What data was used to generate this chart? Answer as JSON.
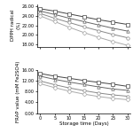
{
  "x": [
    0,
    5,
    10,
    15,
    20,
    25,
    30
  ],
  "top_ylabel": "DPPH radical\n(%)",
  "bottom_ylabel": "FRAP value (mM Fe2SO4)",
  "xlabel": "Storage time (Days)",
  "top_yticks": [
    18.0,
    20.0,
    22.0,
    24.0,
    26.0
  ],
  "bottom_yticks": [
    0.0,
    4.0,
    8.0,
    12.0,
    16.0
  ],
  "top_lines": [
    {
      "y": [
        25.5,
        25.0,
        24.4,
        23.8,
        23.2,
        22.7,
        22.2
      ],
      "color": "#444444",
      "marker": "s",
      "ls": "-"
    },
    {
      "y": [
        25.0,
        24.3,
        23.5,
        22.8,
        22.1,
        21.4,
        20.8
      ],
      "color": "#666666",
      "marker": "^",
      "ls": "-"
    },
    {
      "y": [
        24.5,
        23.5,
        22.6,
        21.7,
        20.9,
        20.1,
        19.4
      ],
      "color": "#888888",
      "marker": "o",
      "ls": "-"
    },
    {
      "y": [
        24.0,
        22.8,
        21.6,
        20.5,
        19.5,
        18.6,
        17.8
      ],
      "color": "#aaaaaa",
      "marker": "D",
      "ls": "-"
    }
  ],
  "bottom_lines": [
    {
      "y": [
        14.8,
        13.8,
        13.0,
        12.2,
        11.5,
        10.8,
        10.0
      ],
      "color": "#444444",
      "marker": "s",
      "ls": "-"
    },
    {
      "y": [
        13.8,
        12.6,
        11.6,
        10.7,
        9.8,
        9.0,
        8.5
      ],
      "color": "#666666",
      "marker": "^",
      "ls": "-"
    },
    {
      "y": [
        12.0,
        10.6,
        9.4,
        8.4,
        7.5,
        6.8,
        6.3
      ],
      "color": "#888888",
      "marker": "o",
      "ls": "-"
    },
    {
      "y": [
        11.0,
        9.5,
        8.2,
        7.1,
        6.2,
        5.5,
        5.0
      ],
      "color": "#aaaaaa",
      "marker": "D",
      "ls": "-"
    }
  ],
  "markersize": 2.5,
  "linewidth": 0.7,
  "fontsize": 4.0,
  "tick_fontsize": 3.5
}
